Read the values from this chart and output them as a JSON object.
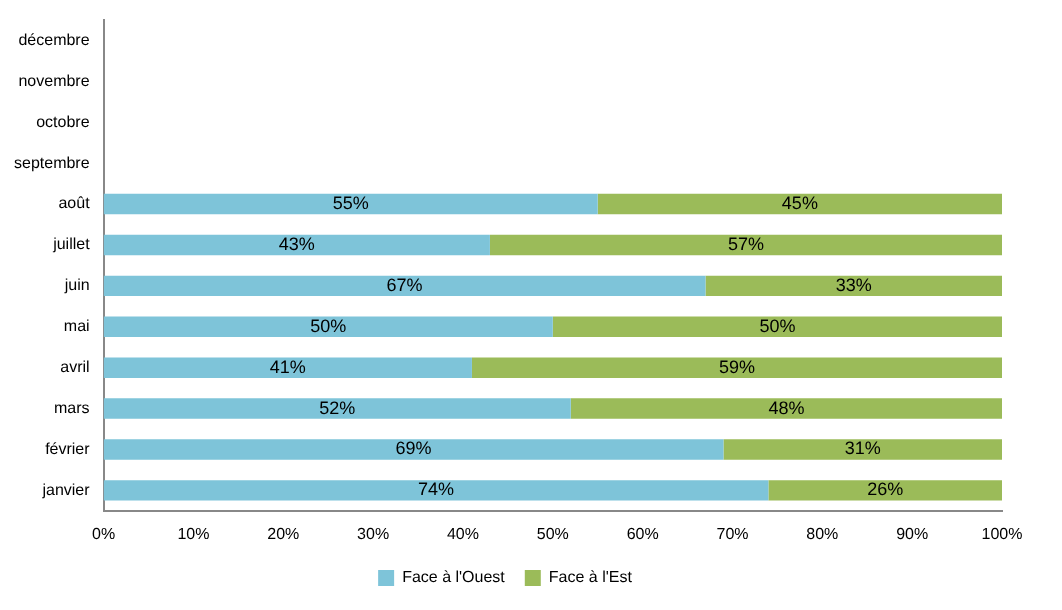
{
  "chart_data": {
    "type": "bar",
    "orientation": "horizontal",
    "stacked": true,
    "categories": [
      "décembre",
      "novembre",
      "octobre",
      "septembre",
      "août",
      "juillet",
      "juin",
      "mai",
      "avril",
      "mars",
      "février",
      "janvier"
    ],
    "series": [
      {
        "name": "Face à l'Ouest",
        "color": "#7ec4d9",
        "values": [
          null,
          null,
          null,
          null,
          55,
          43,
          67,
          50,
          41,
          52,
          69,
          74
        ],
        "value_labels": [
          null,
          null,
          null,
          null,
          "55%",
          "43%",
          "67%",
          "50%",
          "41%",
          "52%",
          "69%",
          "74%"
        ]
      },
      {
        "name": "Face à l'Est",
        "color": "#9bbb59",
        "values": [
          null,
          null,
          null,
          null,
          45,
          57,
          33,
          50,
          59,
          48,
          31,
          26
        ],
        "value_labels": [
          null,
          null,
          null,
          null,
          "45%",
          "57%",
          "33%",
          "50%",
          "59%",
          "48%",
          "31%",
          "26%"
        ]
      }
    ],
    "xlim": [
      0,
      100
    ],
    "xticks": [
      {
        "value": 0,
        "label": "0%"
      },
      {
        "value": 10,
        "label": "10%"
      },
      {
        "value": 20,
        "label": "20%"
      },
      {
        "value": 30,
        "label": "30%"
      },
      {
        "value": 40,
        "label": "40%"
      },
      {
        "value": 50,
        "label": "50%"
      },
      {
        "value": 60,
        "label": "60%"
      },
      {
        "value": 70,
        "label": "70%"
      },
      {
        "value": 80,
        "label": "80%"
      },
      {
        "value": 90,
        "label": "90%"
      },
      {
        "value": 100,
        "label": "100%"
      }
    ],
    "legend": "bottom"
  }
}
